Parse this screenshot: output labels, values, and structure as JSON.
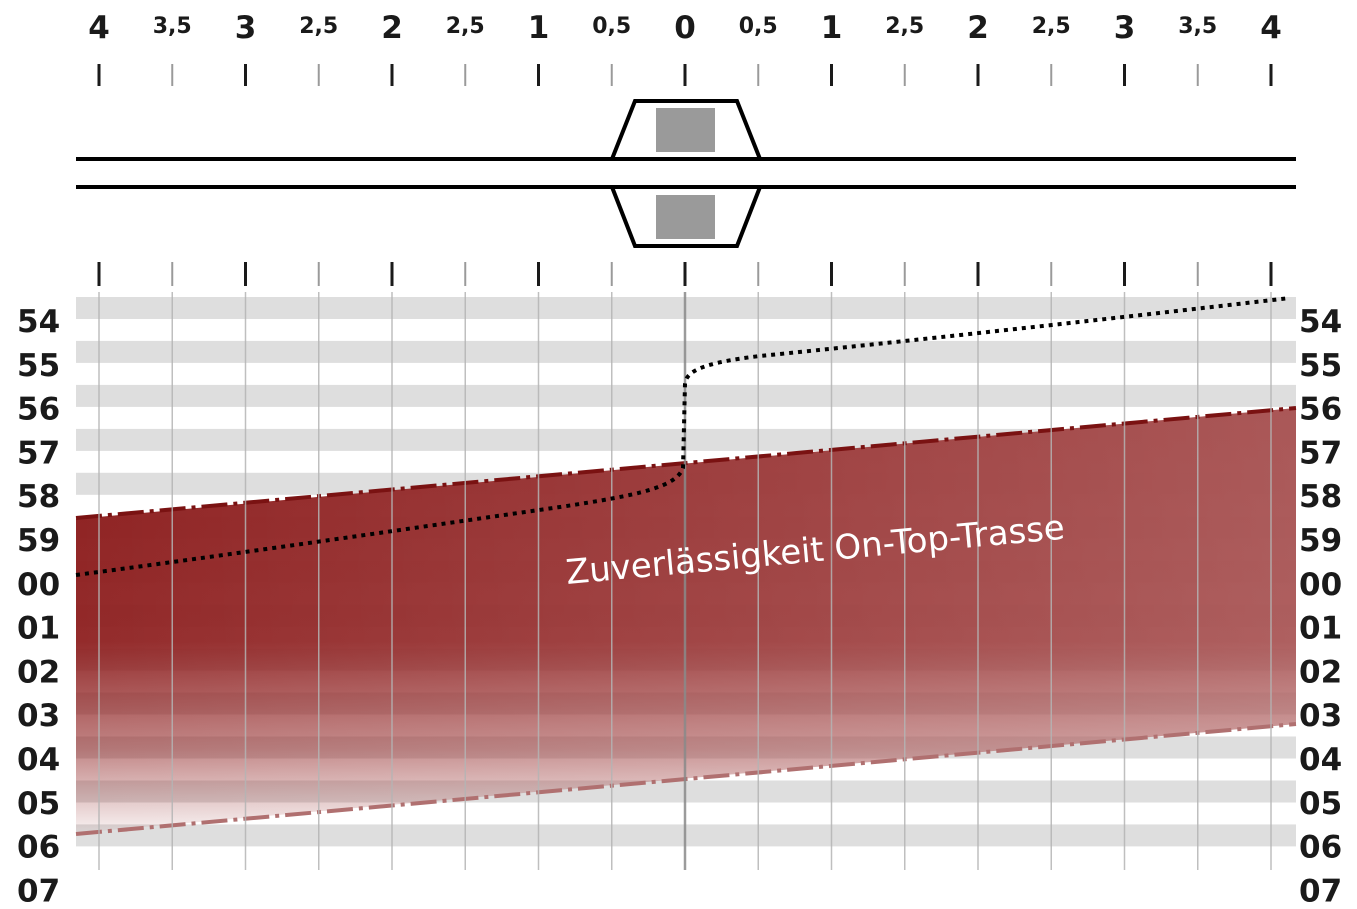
{
  "diagram": {
    "top_axis_labels": [
      "4",
      "3,5",
      "3",
      "2,5",
      "2",
      "2,5",
      "1",
      "0,5",
      "0",
      "0,5",
      "1",
      "2,5",
      "2",
      "2,5",
      "3",
      "3,5",
      "4"
    ],
    "time_labels": [
      "54",
      "55",
      "56",
      "57",
      "58",
      "59",
      "00",
      "01",
      "02",
      "03",
      "04",
      "05",
      "06",
      "07"
    ],
    "band_label": "Zuverlässigkeit On-Top-Trasse",
    "colors": {
      "band": "#8e2020",
      "band_edge": "#7a1212",
      "band_fade": "#c89090",
      "stripe": "#dedede",
      "grid": "#b4b4b4",
      "trajectory": "#000000",
      "platform": "#9a9a9a",
      "text": "#1a1a1a"
    }
  }
}
